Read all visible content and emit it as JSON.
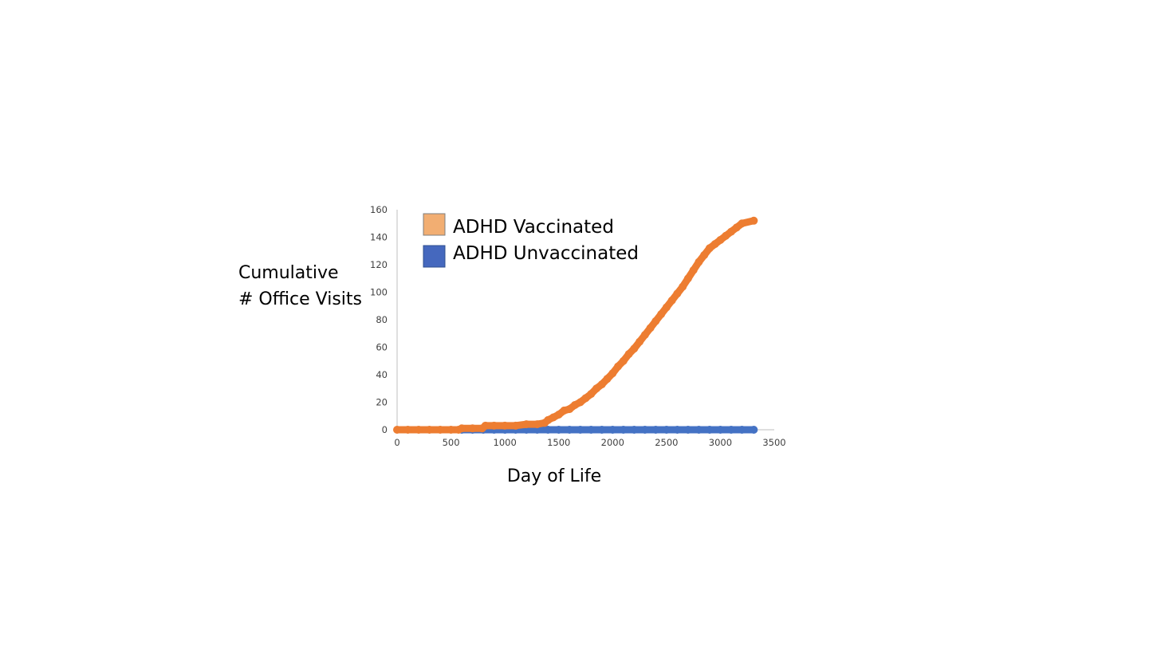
{
  "chart_data": {
    "type": "scatter",
    "title": "",
    "xlabel": "Day of Life",
    "ylabel_lines": [
      "Cumulative",
      "# Office Visits"
    ],
    "xlim": [
      0,
      3500
    ],
    "ylim": [
      0,
      160
    ],
    "x_ticks": [
      0,
      500,
      1000,
      1500,
      2000,
      2500,
      3000,
      3500
    ],
    "y_ticks": [
      0,
      20,
      40,
      60,
      80,
      100,
      120,
      140,
      160
    ],
    "grid": false,
    "legend_position": "top-left",
    "legend": [
      {
        "label": "ADHD Vaccinated",
        "swatch_color": "#F2AE72"
      },
      {
        "label": "ADHD Unvaccinated",
        "swatch_color": "#4568BE"
      }
    ],
    "series": [
      {
        "name": "ADHD Vaccinated",
        "color": "#ED7D31",
        "points": [
          [
            0,
            0
          ],
          [
            100,
            0
          ],
          [
            200,
            0
          ],
          [
            300,
            0
          ],
          [
            400,
            0
          ],
          [
            500,
            0
          ],
          [
            570,
            0
          ],
          [
            600,
            1
          ],
          [
            700,
            1
          ],
          [
            790,
            1
          ],
          [
            820,
            3
          ],
          [
            900,
            3
          ],
          [
            1000,
            3
          ],
          [
            1100,
            3
          ],
          [
            1200,
            4
          ],
          [
            1300,
            4
          ],
          [
            1370,
            5
          ],
          [
            1400,
            7
          ],
          [
            1450,
            9
          ],
          [
            1500,
            11
          ],
          [
            1550,
            14
          ],
          [
            1600,
            15
          ],
          [
            1650,
            18
          ],
          [
            1700,
            20
          ],
          [
            1750,
            23
          ],
          [
            1800,
            26
          ],
          [
            1850,
            30
          ],
          [
            1900,
            33
          ],
          [
            1950,
            37
          ],
          [
            2000,
            41
          ],
          [
            2050,
            46
          ],
          [
            2100,
            50
          ],
          [
            2150,
            55
          ],
          [
            2200,
            59
          ],
          [
            2250,
            64
          ],
          [
            2300,
            69
          ],
          [
            2350,
            74
          ],
          [
            2400,
            79
          ],
          [
            2450,
            84
          ],
          [
            2500,
            89
          ],
          [
            2550,
            94
          ],
          [
            2600,
            99
          ],
          [
            2650,
            104
          ],
          [
            2700,
            110
          ],
          [
            2750,
            116
          ],
          [
            2800,
            122
          ],
          [
            2850,
            127
          ],
          [
            2900,
            132
          ],
          [
            2950,
            135
          ],
          [
            3000,
            138
          ],
          [
            3050,
            141
          ],
          [
            3100,
            144
          ],
          [
            3150,
            147
          ],
          [
            3200,
            150
          ],
          [
            3310,
            152
          ]
        ]
      },
      {
        "name": "ADHD Unvaccinated",
        "color": "#4472C4",
        "points": [
          [
            600,
            0
          ],
          [
            700,
            0
          ],
          [
            800,
            0
          ],
          [
            900,
            0
          ],
          [
            1000,
            0
          ],
          [
            1100,
            0
          ],
          [
            1200,
            0
          ],
          [
            1300,
            0
          ],
          [
            1400,
            0
          ],
          [
            1500,
            0
          ],
          [
            1600,
            0
          ],
          [
            1700,
            0
          ],
          [
            1800,
            0
          ],
          [
            1900,
            0
          ],
          [
            2000,
            0
          ],
          [
            2100,
            0
          ],
          [
            2200,
            0
          ],
          [
            2300,
            0
          ],
          [
            2400,
            0
          ],
          [
            2500,
            0
          ],
          [
            2600,
            0
          ],
          [
            2700,
            0
          ],
          [
            2800,
            0
          ],
          [
            2900,
            0
          ],
          [
            3000,
            0
          ],
          [
            3100,
            0
          ],
          [
            3200,
            0
          ],
          [
            3310,
            0
          ]
        ]
      }
    ]
  }
}
